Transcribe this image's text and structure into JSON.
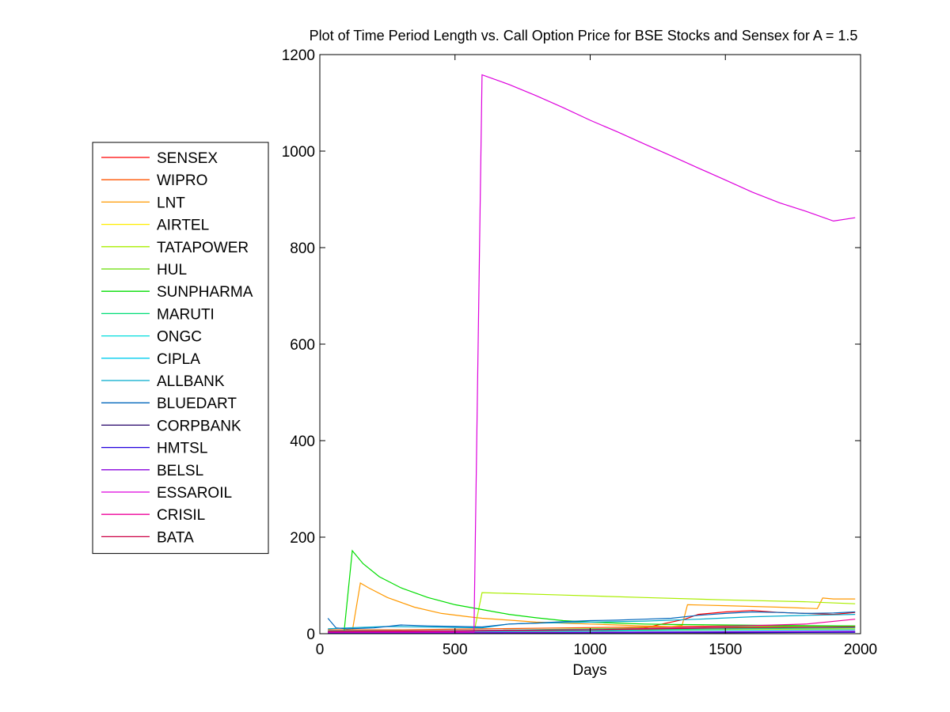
{
  "chart_data": {
    "type": "line",
    "title": "Plot of Time Period Length vs. Call Option Price for BSE Stocks and Sensex for A = 1.5",
    "xlabel": "Days",
    "ylabel": "",
    "xlim": [
      0,
      2000
    ],
    "ylim": [
      0,
      1200
    ],
    "xticks": [
      0,
      500,
      1000,
      1500,
      2000
    ],
    "yticks": [
      0,
      200,
      400,
      600,
      800,
      1000,
      1200
    ],
    "xtick_labels": [
      "0",
      "500",
      "1000",
      "1500",
      "2000"
    ],
    "ytick_labels": [
      "0",
      "200",
      "400",
      "600",
      "800",
      "1000",
      "1200"
    ],
    "grid": false,
    "legend_position": "outside-left",
    "series": [
      {
        "name": "SENSEX",
        "color": "#ff0000",
        "points": [
          [
            30,
            3
          ],
          [
            300,
            3
          ],
          [
            600,
            4
          ],
          [
            900,
            6
          ],
          [
            1200,
            12
          ],
          [
            1350,
            30
          ],
          [
            1400,
            40
          ],
          [
            1500,
            45
          ],
          [
            1600,
            48
          ],
          [
            1700,
            44
          ],
          [
            1800,
            42
          ],
          [
            1900,
            40
          ],
          [
            1980,
            44
          ]
        ]
      },
      {
        "name": "WIPRO",
        "color": "#ff5500",
        "points": [
          [
            30,
            8
          ],
          [
            300,
            8
          ],
          [
            600,
            10
          ],
          [
            900,
            12
          ],
          [
            1200,
            14
          ],
          [
            1500,
            16
          ],
          [
            1800,
            16
          ],
          [
            1980,
            16
          ]
        ]
      },
      {
        "name": "LNT",
        "color": "#ff9900",
        "points": [
          [
            30,
            5
          ],
          [
            120,
            5
          ],
          [
            150,
            105
          ],
          [
            180,
            95
          ],
          [
            250,
            75
          ],
          [
            350,
            55
          ],
          [
            450,
            42
          ],
          [
            550,
            35
          ],
          [
            600,
            32
          ],
          [
            700,
            28
          ],
          [
            800,
            24
          ],
          [
            900,
            22
          ],
          [
            1000,
            20
          ],
          [
            1100,
            18
          ],
          [
            1200,
            16
          ],
          [
            1300,
            15
          ],
          [
            1340,
            17
          ],
          [
            1360,
            60
          ],
          [
            1500,
            58
          ],
          [
            1700,
            55
          ],
          [
            1840,
            52
          ],
          [
            1860,
            74
          ],
          [
            1900,
            72
          ],
          [
            1980,
            72
          ]
        ]
      },
      {
        "name": "AIRTEL",
        "color": "#ffee00",
        "points": [
          [
            30,
            2
          ],
          [
            500,
            3
          ],
          [
            1000,
            5
          ],
          [
            1500,
            8
          ],
          [
            1980,
            10
          ]
        ]
      },
      {
        "name": "TATAPOWER",
        "color": "#aaee00",
        "points": [
          [
            30,
            2
          ],
          [
            570,
            2
          ],
          [
            600,
            85
          ],
          [
            900,
            80
          ],
          [
            1200,
            75
          ],
          [
            1500,
            70
          ],
          [
            1800,
            66
          ],
          [
            1980,
            62
          ]
        ]
      },
      {
        "name": "HUL",
        "color": "#66dd00",
        "points": [
          [
            30,
            4
          ],
          [
            500,
            6
          ],
          [
            1000,
            10
          ],
          [
            1500,
            14
          ],
          [
            1980,
            16
          ]
        ]
      },
      {
        "name": "SUNPHARMA",
        "color": "#00dd00",
        "points": [
          [
            30,
            3
          ],
          [
            90,
            5
          ],
          [
            120,
            172
          ],
          [
            160,
            145
          ],
          [
            220,
            118
          ],
          [
            300,
            95
          ],
          [
            400,
            75
          ],
          [
            500,
            60
          ],
          [
            600,
            50
          ],
          [
            700,
            40
          ],
          [
            800,
            33
          ],
          [
            900,
            27
          ],
          [
            1000,
            24
          ],
          [
            1100,
            22
          ],
          [
            1200,
            20
          ],
          [
            1300,
            19
          ],
          [
            1500,
            18
          ],
          [
            1700,
            17
          ],
          [
            1980,
            16
          ]
        ]
      },
      {
        "name": "MARUTI",
        "color": "#00dd77",
        "points": [
          [
            30,
            2
          ],
          [
            500,
            4
          ],
          [
            1000,
            7
          ],
          [
            1500,
            10
          ],
          [
            1980,
            12
          ]
        ]
      },
      {
        "name": "ONGC",
        "color": "#00dddd",
        "points": [
          [
            30,
            6
          ],
          [
            400,
            6
          ],
          [
            800,
            8
          ],
          [
            1200,
            10
          ],
          [
            1600,
            12
          ],
          [
            1980,
            13
          ]
        ]
      },
      {
        "name": "CIPLA",
        "color": "#00ccee",
        "points": [
          [
            30,
            3
          ],
          [
            600,
            4
          ],
          [
            1200,
            6
          ],
          [
            1980,
            8
          ]
        ]
      },
      {
        "name": "ALLBANK",
        "color": "#00aacc",
        "points": [
          [
            30,
            10
          ],
          [
            100,
            12
          ],
          [
            250,
            15
          ],
          [
            400,
            14
          ],
          [
            600,
            12
          ],
          [
            700,
            20
          ],
          [
            800,
            22
          ],
          [
            1000,
            24
          ],
          [
            1200,
            26
          ],
          [
            1400,
            30
          ],
          [
            1600,
            35
          ],
          [
            1800,
            38
          ],
          [
            1980,
            40
          ]
        ]
      },
      {
        "name": "BLUEDART",
        "color": "#0066bb",
        "points": [
          [
            30,
            32
          ],
          [
            60,
            12
          ],
          [
            100,
            10
          ],
          [
            200,
            12
          ],
          [
            300,
            18
          ],
          [
            400,
            16
          ],
          [
            500,
            15
          ],
          [
            600,
            14
          ],
          [
            700,
            20
          ],
          [
            800,
            22
          ],
          [
            900,
            25
          ],
          [
            1000,
            27
          ],
          [
            1100,
            28
          ],
          [
            1200,
            30
          ],
          [
            1300,
            32
          ],
          [
            1400,
            38
          ],
          [
            1500,
            42
          ],
          [
            1600,
            45
          ],
          [
            1700,
            44
          ],
          [
            1800,
            42
          ],
          [
            1900,
            43
          ],
          [
            1980,
            45
          ]
        ]
      },
      {
        "name": "CORPBANK",
        "color": "#220066",
        "points": [
          [
            30,
            1
          ],
          [
            500,
            1
          ],
          [
            1000,
            2
          ],
          [
            1500,
            2
          ],
          [
            1980,
            3
          ]
        ]
      },
      {
        "name": "HMTSL",
        "color": "#2200dd",
        "points": [
          [
            30,
            1
          ],
          [
            500,
            2
          ],
          [
            1000,
            2
          ],
          [
            1500,
            3
          ],
          [
            1980,
            3
          ]
        ]
      },
      {
        "name": "BELSL",
        "color": "#8800dd",
        "points": [
          [
            30,
            2
          ],
          [
            500,
            2
          ],
          [
            1000,
            3
          ],
          [
            1500,
            4
          ],
          [
            1980,
            5
          ]
        ]
      },
      {
        "name": "ESSAROIL",
        "color": "#dd00dd",
        "points": [
          [
            30,
            3
          ],
          [
            570,
            3
          ],
          [
            600,
            1158
          ],
          [
            700,
            1138
          ],
          [
            800,
            1115
          ],
          [
            900,
            1090
          ],
          [
            1000,
            1064
          ],
          [
            1100,
            1040
          ],
          [
            1200,
            1015
          ],
          [
            1300,
            990
          ],
          [
            1400,
            965
          ],
          [
            1500,
            940
          ],
          [
            1600,
            915
          ],
          [
            1700,
            893
          ],
          [
            1800,
            875
          ],
          [
            1900,
            855
          ],
          [
            1980,
            862
          ]
        ]
      },
      {
        "name": "CRISIL",
        "color": "#ee0099",
        "points": [
          [
            30,
            4
          ],
          [
            500,
            5
          ],
          [
            1000,
            8
          ],
          [
            1500,
            15
          ],
          [
            1800,
            20
          ],
          [
            1980,
            30
          ]
        ]
      },
      {
        "name": "BATA",
        "color": "#cc0044",
        "points": [
          [
            30,
            5
          ],
          [
            500,
            6
          ],
          [
            1000,
            8
          ],
          [
            1500,
            12
          ],
          [
            1980,
            14
          ]
        ]
      }
    ]
  }
}
